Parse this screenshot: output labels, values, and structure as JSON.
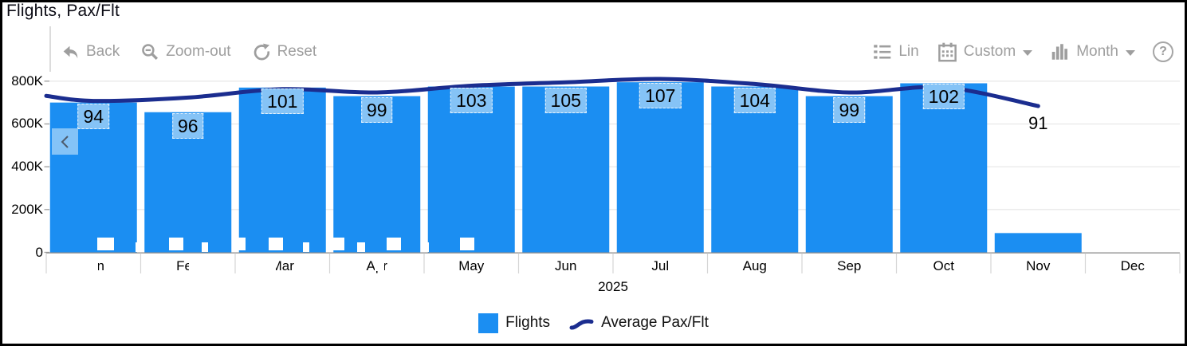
{
  "window": {
    "title": "Flights, Pax/Flt"
  },
  "toolbar": {
    "left": [
      {
        "label": "Back",
        "icon": "back-icon"
      },
      {
        "label": "Zoom-out",
        "icon": "zoom-out-icon"
      },
      {
        "label": "Reset",
        "icon": "reset-icon"
      }
    ],
    "right": [
      {
        "label": "Lin",
        "icon": "list-icon"
      },
      {
        "label": "Custom",
        "icon": "calendar-icon",
        "dropdown": true
      },
      {
        "label": "Month",
        "icon": "column-chart-icon",
        "dropdown": true
      },
      {
        "label": "?",
        "icon": "help-icon"
      }
    ]
  },
  "scrollbar": {
    "handle_icon": "left-chevron"
  },
  "chart_data": {
    "type": "bar+line",
    "title": "Flights, Pax/Flt",
    "categories": [
      "Jan",
      "Feb",
      "Mar",
      "Apr",
      "May",
      "Jun",
      "Jul",
      "Aug",
      "Sep",
      "Oct",
      "Nov",
      "Dec"
    ],
    "series": [
      {
        "name": "Flights",
        "type": "bar",
        "color": "#1b8ef2",
        "values": [
          700000,
          655000,
          770000,
          730000,
          775000,
          775000,
          795000,
          775000,
          730000,
          790000,
          90000,
          null
        ]
      },
      {
        "name": "Average Pax/Flt",
        "type": "line",
        "color": "#1b2d8f",
        "lead_in_value": 97,
        "values": [
          94,
          96,
          101,
          99,
          103,
          105,
          107,
          104,
          99,
          102,
          91,
          null
        ]
      }
    ],
    "xlabel_group": "2025",
    "ylabel": "",
    "ylim": [
      0,
      800000
    ],
    "yticks": [
      {
        "value": 0,
        "label": "0"
      },
      {
        "value": 200000,
        "label": "200K"
      },
      {
        "value": 400000,
        "label": "400K"
      },
      {
        "value": 600000,
        "label": "600K"
      },
      {
        "value": 800000,
        "label": "800K"
      }
    ],
    "legend": [
      "Flights",
      "Average Pax/Flt"
    ],
    "legend_position": "bottom",
    "grid": true
  },
  "colors": {
    "bar": "#1b8ef2",
    "line": "#1b2d8f",
    "value_label_bg": "#85c3f6",
    "gridline": "#e8e8e8",
    "axis_line": "#8f8f8f",
    "toolbar_gray": "#9e9e9e",
    "scroll_handle_bg": "#96cdf8"
  },
  "artifacts": {
    "bar_bottom_squares": [
      [
        122,
        298,
        21,
        16
      ],
      [
        170,
        304,
        9,
        12
      ],
      [
        212,
        298,
        18,
        16
      ],
      [
        253,
        304,
        8,
        12
      ],
      [
        298,
        298,
        10,
        16
      ],
      [
        337,
        298,
        18,
        16
      ],
      [
        380,
        304,
        8,
        12
      ],
      [
        413,
        298,
        19,
        16
      ],
      [
        448,
        304,
        10,
        12
      ],
      [
        485,
        298,
        18,
        16
      ],
      [
        528,
        304,
        10,
        12
      ],
      [
        577,
        298,
        18,
        16
      ]
    ],
    "label_obscurers": [
      [
        100,
        323,
        23,
        17
      ],
      [
        237,
        323,
        13,
        17
      ],
      [
        332,
        323,
        14,
        17
      ],
      [
        470,
        323,
        12,
        17
      ]
    ]
  }
}
